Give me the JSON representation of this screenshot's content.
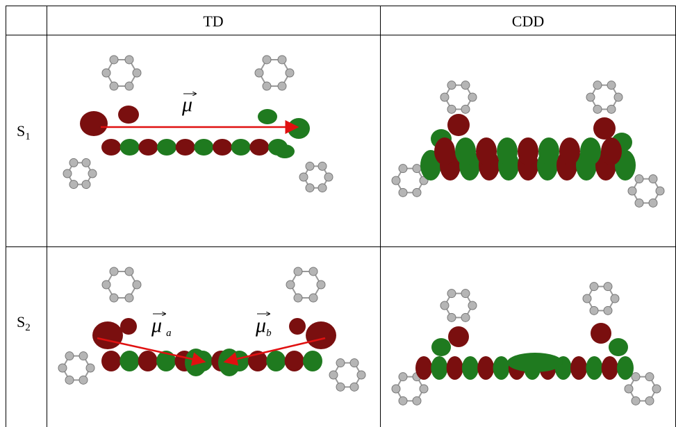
{
  "table": {
    "header": {
      "td": "TD",
      "cdd": "CDD"
    },
    "rows": [
      {
        "state": {
          "base": "S",
          "sub": "1"
        },
        "annotations": [
          {
            "symbol": "μ"
          }
        ]
      },
      {
        "state": {
          "base": "S",
          "sub": "2"
        },
        "annotations": [
          {
            "symbol": "μ",
            "sub": "a"
          },
          {
            "symbol": "μ",
            "sub": "b"
          }
        ]
      }
    ]
  }
}
